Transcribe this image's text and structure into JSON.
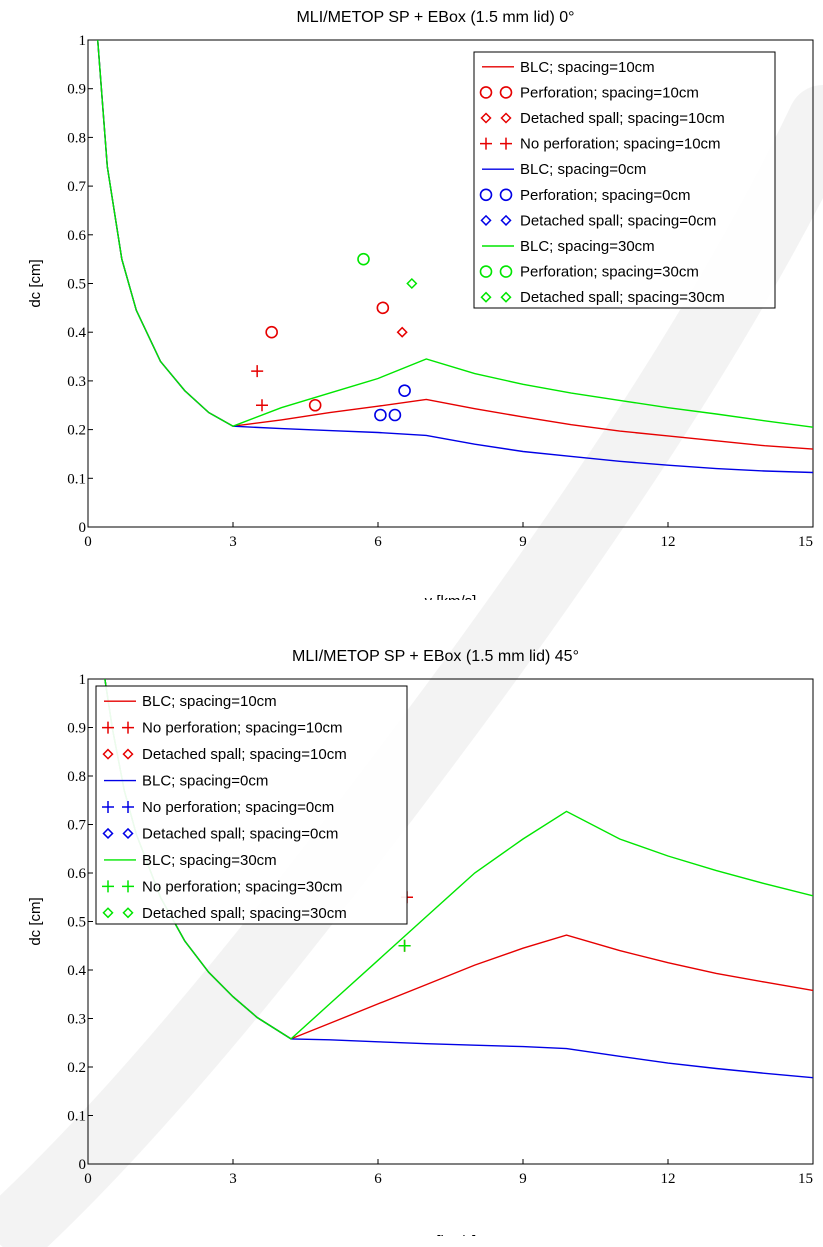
{
  "chart_data": [
    {
      "type": "line",
      "title": "MLI/METOP SP + EBox (1.5 mm lid) 0°",
      "xlabel": "v [km/s]",
      "ylabel": "dc [cm]",
      "xlim": [
        0,
        15
      ],
      "ylim": [
        0,
        1
      ],
      "xticks": [
        "0",
        "3",
        "6",
        "9",
        "12",
        "15"
      ],
      "yticks": [
        "0",
        "0.1",
        "0.2",
        "0.3",
        "0.4",
        "0.5",
        "0.6",
        "0.7",
        "0.8",
        "0.9",
        "1"
      ],
      "grid": false,
      "legend_position": "top-right",
      "series": [
        {
          "name": "BLC; spacing=10cm",
          "kind": "line",
          "color": "#e60000",
          "x": [
            0.2,
            0.4,
            0.7,
            1.0,
            1.5,
            2.0,
            2.5,
            3.0,
            4.0,
            5.0,
            6.0,
            7.0,
            8.0,
            9.0,
            10.0,
            11.0,
            12.0,
            13.0,
            14.0,
            15.0
          ],
          "y": [
            1.0,
            0.74,
            0.55,
            0.445,
            0.34,
            0.28,
            0.235,
            0.207,
            0.22,
            0.235,
            0.248,
            0.262,
            0.243,
            0.226,
            0.21,
            0.197,
            0.187,
            0.177,
            0.167,
            0.16
          ]
        },
        {
          "name": "Perforation; spacing=10cm",
          "kind": "scatter",
          "marker": "circle",
          "color": "#e60000",
          "x": [
            3.8,
            4.7,
            6.1
          ],
          "y": [
            0.4,
            0.25,
            0.45
          ]
        },
        {
          "name": "Detached spall; spacing=10cm",
          "kind": "scatter",
          "marker": "diamond",
          "color": "#e60000",
          "x": [
            6.5
          ],
          "y": [
            0.4
          ]
        },
        {
          "name": "No perforation; spacing=10cm",
          "kind": "scatter",
          "marker": "plus",
          "color": "#e60000",
          "x": [
            3.5,
            3.6
          ],
          "y": [
            0.32,
            0.25
          ]
        },
        {
          "name": "BLC; spacing=0cm",
          "kind": "line",
          "color": "#0000e6",
          "x": [
            0.2,
            0.4,
            0.7,
            1.0,
            1.5,
            2.0,
            2.5,
            3.0,
            4.0,
            5.0,
            6.0,
            7.0,
            8.0,
            9.0,
            10.0,
            11.0,
            12.0,
            13.0,
            14.0,
            15.0
          ],
          "y": [
            1.0,
            0.74,
            0.55,
            0.445,
            0.34,
            0.28,
            0.235,
            0.207,
            0.202,
            0.198,
            0.194,
            0.188,
            0.17,
            0.155,
            0.145,
            0.135,
            0.127,
            0.12,
            0.115,
            0.112
          ]
        },
        {
          "name": "Perforation; spacing=0cm",
          "kind": "scatter",
          "marker": "circle",
          "color": "#0000e6",
          "x": [
            6.05,
            6.35,
            6.55
          ],
          "y": [
            0.23,
            0.23,
            0.28
          ]
        },
        {
          "name": "Detached spall; spacing=0cm",
          "kind": "scatter",
          "marker": "diamond",
          "color": "#0000e6",
          "x": [],
          "y": []
        },
        {
          "name": "BLC; spacing=30cm",
          "kind": "line",
          "color": "#00e600",
          "x": [
            0.2,
            0.4,
            0.7,
            1.0,
            1.5,
            2.0,
            2.5,
            3.0,
            4.0,
            5.0,
            6.0,
            7.0,
            8.0,
            9.0,
            10.0,
            11.0,
            12.0,
            13.0,
            14.0,
            15.0
          ],
          "y": [
            1.0,
            0.74,
            0.55,
            0.445,
            0.34,
            0.28,
            0.235,
            0.207,
            0.245,
            0.275,
            0.305,
            0.345,
            0.315,
            0.293,
            0.275,
            0.26,
            0.245,
            0.232,
            0.218,
            0.205
          ]
        },
        {
          "name": "Perforation; spacing=30cm",
          "kind": "scatter",
          "marker": "circle",
          "color": "#00e600",
          "x": [
            5.7
          ],
          "y": [
            0.55
          ]
        },
        {
          "name": "Detached spall; spacing=30cm",
          "kind": "scatter",
          "marker": "diamond",
          "color": "#00e600",
          "x": [
            6.7
          ],
          "y": [
            0.5
          ]
        }
      ]
    },
    {
      "type": "line",
      "title": "MLI/METOP SP + EBox (1.5 mm lid) 45°",
      "xlabel": "v [km/s]",
      "ylabel": "dc [cm]",
      "xlim": [
        0,
        15
      ],
      "ylim": [
        0,
        1
      ],
      "xticks": [
        "0",
        "3",
        "6",
        "9",
        "12",
        "15"
      ],
      "yticks": [
        "0",
        "0.1",
        "0.2",
        "0.3",
        "0.4",
        "0.5",
        "0.6",
        "0.7",
        "0.8",
        "0.9",
        "1"
      ],
      "grid": false,
      "legend_position": "top-left",
      "series": [
        {
          "name": "BLC; spacing=10cm",
          "kind": "line",
          "color": "#e60000",
          "x": [
            0.35,
            0.5,
            0.75,
            1.0,
            1.5,
            2.0,
            2.5,
            3.0,
            3.5,
            4.2,
            5.0,
            6.0,
            7.0,
            8.0,
            9.0,
            9.9,
            11.0,
            12.0,
            13.0,
            14.0,
            15.0
          ],
          "y": [
            1.0,
            0.9,
            0.77,
            0.68,
            0.55,
            0.46,
            0.395,
            0.345,
            0.302,
            0.258,
            0.29,
            0.33,
            0.37,
            0.41,
            0.445,
            0.472,
            0.44,
            0.415,
            0.393,
            0.375,
            0.358
          ]
        },
        {
          "name": "No perforation; spacing=10cm",
          "kind": "scatter",
          "marker": "plus",
          "color": "#e60000",
          "x": [
            6.55,
            6.6
          ],
          "y": [
            0.45,
            0.55
          ]
        },
        {
          "name": "Detached spall; spacing=10cm",
          "kind": "scatter",
          "marker": "diamond",
          "color": "#e60000",
          "x": [],
          "y": []
        },
        {
          "name": "BLC; spacing=0cm",
          "kind": "line",
          "color": "#0000e6",
          "x": [
            0.35,
            0.5,
            0.75,
            1.0,
            1.5,
            2.0,
            2.5,
            3.0,
            3.5,
            4.2,
            5.0,
            6.0,
            7.0,
            8.0,
            9.0,
            9.9,
            11.0,
            12.0,
            13.0,
            14.0,
            15.0
          ],
          "y": [
            1.0,
            0.9,
            0.77,
            0.68,
            0.55,
            0.46,
            0.395,
            0.345,
            0.302,
            0.258,
            0.256,
            0.252,
            0.248,
            0.245,
            0.242,
            0.238,
            0.222,
            0.208,
            0.197,
            0.187,
            0.178
          ]
        },
        {
          "name": "No perforation; spacing=0cm",
          "kind": "scatter",
          "marker": "plus",
          "color": "#0000e6",
          "x": [],
          "y": []
        },
        {
          "name": "Detached spall; spacing=0cm",
          "kind": "scatter",
          "marker": "diamond",
          "color": "#0000e6",
          "x": [],
          "y": []
        },
        {
          "name": "BLC; spacing=30cm",
          "kind": "line",
          "color": "#00e600",
          "x": [
            0.35,
            0.5,
            0.75,
            1.0,
            1.5,
            2.0,
            2.5,
            3.0,
            3.5,
            4.2,
            5.0,
            6.0,
            7.0,
            8.0,
            9.0,
            9.9,
            11.0,
            12.0,
            13.0,
            14.0,
            15.0
          ],
          "y": [
            1.0,
            0.9,
            0.77,
            0.68,
            0.55,
            0.46,
            0.395,
            0.345,
            0.302,
            0.258,
            0.33,
            0.42,
            0.51,
            0.6,
            0.67,
            0.727,
            0.67,
            0.635,
            0.605,
            0.578,
            0.553
          ]
        },
        {
          "name": "No perforation; spacing=30cm",
          "kind": "scatter",
          "marker": "plus",
          "color": "#00e600",
          "x": [
            6.55
          ],
          "y": [
            0.45
          ]
        },
        {
          "name": "Detached spall; spacing=30cm",
          "kind": "scatter",
          "marker": "diamond",
          "color": "#00e600",
          "x": [],
          "y": []
        }
      ]
    }
  ]
}
